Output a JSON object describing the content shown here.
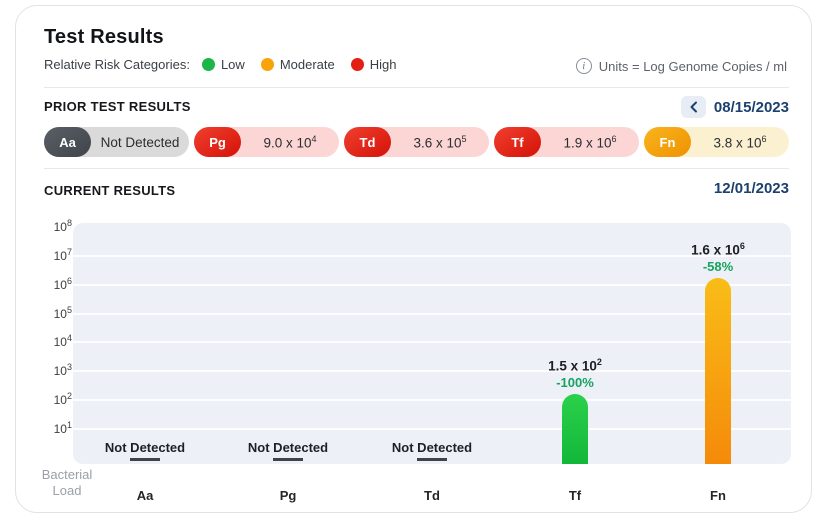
{
  "header": {
    "title": "Test Results",
    "legend_label": "Relative Risk Categories:",
    "legend": [
      {
        "label": "Low",
        "color": "#1db448"
      },
      {
        "label": "Moderate",
        "color": "#f8a408"
      },
      {
        "label": "High",
        "color": "#e41f14"
      }
    ],
    "units_note": "Units = Log Genome Copies / ml",
    "info_icon": "info-circle"
  },
  "prior": {
    "heading": "PRIOR TEST RESULTS",
    "date": "08/15/2023",
    "nav_icon": "chevron-left-icon",
    "pills": [
      {
        "code": "Aa",
        "risk": "not-detected",
        "value_base": "Not Detected",
        "value_exp": "",
        "badge_top": "#5b6066",
        "badge_bottom": "#3f444a",
        "bg": "#dadada"
      },
      {
        "code": "Pg",
        "risk": "high",
        "value_base": "9.0 x 10",
        "value_exp": "4",
        "badge_top": "#f0402f",
        "badge_bottom": "#d41208",
        "bg": "#fcd6d4"
      },
      {
        "code": "Td",
        "risk": "high",
        "value_base": "3.6 x 10",
        "value_exp": "5",
        "badge_top": "#f0402f",
        "badge_bottom": "#d41208",
        "bg": "#fcd6d4"
      },
      {
        "code": "Tf",
        "risk": "high",
        "value_base": "1.9 x 10",
        "value_exp": "6",
        "badge_top": "#f0402f",
        "badge_bottom": "#d41208",
        "bg": "#fcd6d4"
      },
      {
        "code": "Fn",
        "risk": "moderate",
        "value_base": "3.8 x 10",
        "value_exp": "6",
        "badge_top": "#f9b51e",
        "badge_bottom": "#ef9102",
        "bg": "#fbf1d1"
      }
    ]
  },
  "current": {
    "heading": "CURRENT RESULTS",
    "date": "12/01/2023"
  },
  "chart_data": {
    "type": "bar",
    "y_scale": "log",
    "ylabel": "Bacterial Load",
    "ylim": [
      10,
      100000000
    ],
    "grid": true,
    "y_ticks": [
      {
        "base": "10",
        "exp": "8"
      },
      {
        "base": "10",
        "exp": "7"
      },
      {
        "base": "10",
        "exp": "6"
      },
      {
        "base": "10",
        "exp": "5"
      },
      {
        "base": "10",
        "exp": "4"
      },
      {
        "base": "10",
        "exp": "3"
      },
      {
        "base": "10",
        "exp": "2"
      },
      {
        "base": "10",
        "exp": "1"
      }
    ],
    "categories": [
      "Aa",
      "Pg",
      "Td",
      "Tf",
      "Fn"
    ],
    "points": [
      {
        "category": "Aa",
        "status": "not_detected",
        "label": "Not Detected"
      },
      {
        "category": "Pg",
        "status": "not_detected",
        "label": "Not Detected"
      },
      {
        "category": "Td",
        "status": "not_detected",
        "label": "Not Detected"
      },
      {
        "category": "Tf",
        "status": "detected",
        "value": 150,
        "value_base": "1.5 x 10",
        "value_exp": "2",
        "change": "-100%",
        "risk": "low",
        "bar_top": "#2bd14a",
        "bar_bottom": "#12b73a"
      },
      {
        "category": "Fn",
        "status": "detected",
        "value": 1600000,
        "value_base": "1.6 x 10",
        "value_exp": "6",
        "change": "-58%",
        "risk": "moderate",
        "bar_top": "#f9bd17",
        "bar_bottom": "#f58a0a"
      }
    ],
    "change_color": "#16a35e",
    "plot_bg": "#edf0f6"
  }
}
